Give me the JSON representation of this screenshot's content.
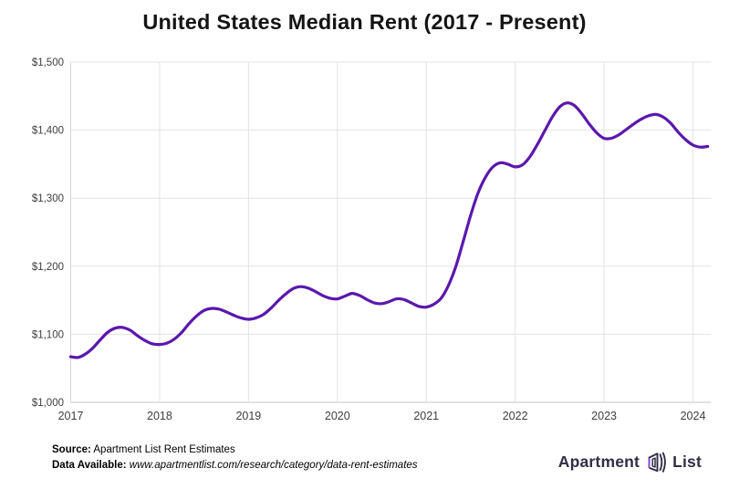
{
  "title": "United States Median Rent (2017 - Present)",
  "footer": {
    "source_label": "Source:",
    "source_value": " Apartment List Rent Estimates",
    "data_label": "Data Available:",
    "data_value": " www.apartmentlist.com/research/category/data-rent-estimates"
  },
  "logo": {
    "left": "Apartment",
    "right": "List"
  },
  "colors": {
    "line": "#5A18AC",
    "grid": "#E3E3E3",
    "axis_left": "#D4D4D4",
    "axis_bottom": "#C4C4C4",
    "tick": "#3E3E3E",
    "title": "#141414",
    "logo_text": "#322D44",
    "logo_accent": "#8B4FD6"
  },
  "chart_data": {
    "type": "line",
    "title": "United States Median Rent (2017 - Present)",
    "xlabel": "",
    "ylabel": "",
    "grid": true,
    "legend": false,
    "ylim": [
      1000,
      1500
    ],
    "y_tick_step": 100,
    "y_tick_labels": [
      "$1,000",
      "$1,100",
      "$1,200",
      "$1,300",
      "$1,400",
      "$1,500"
    ],
    "x_tick_labels": [
      "2017",
      "2018",
      "2019",
      "2020",
      "2021",
      "2022",
      "2023",
      "2024"
    ],
    "frequency": "monthly",
    "start": "2017-01",
    "end": "2024-03",
    "series": [
      {
        "name": "US Median Rent ($)",
        "monthly_values": [
          1067,
          1066,
          1071,
          1080,
          1092,
          1103,
          1109,
          1110,
          1106,
          1098,
          1091,
          1086,
          1085,
          1087,
          1093,
          1103,
          1116,
          1127,
          1135,
          1138,
          1137,
          1133,
          1128,
          1124,
          1122,
          1124,
          1129,
          1138,
          1149,
          1159,
          1167,
          1170,
          1168,
          1163,
          1157,
          1153,
          1152,
          1156,
          1160,
          1157,
          1151,
          1146,
          1145,
          1148,
          1152,
          1151,
          1146,
          1141,
          1140,
          1144,
          1153,
          1172,
          1200,
          1237,
          1275,
          1308,
          1331,
          1346,
          1352,
          1350,
          1346,
          1349,
          1361,
          1379,
          1399,
          1419,
          1434,
          1440,
          1436,
          1424,
          1409,
          1396,
          1388,
          1388,
          1393,
          1401,
          1409,
          1416,
          1421,
          1423,
          1419,
          1410,
          1397,
          1386,
          1378,
          1375,
          1376
        ]
      }
    ]
  }
}
